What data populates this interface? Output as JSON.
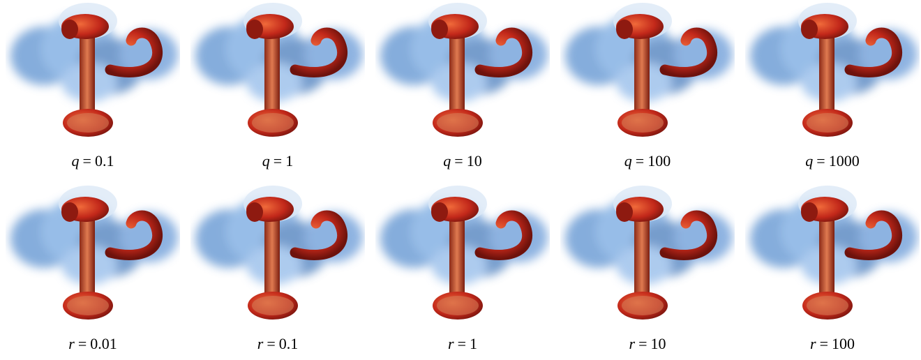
{
  "figure": {
    "rows": [
      {
        "panels": [
          {
            "symbol": "q",
            "relation": "=",
            "value": "0.1"
          },
          {
            "symbol": "q",
            "relation": "=",
            "value": "1"
          },
          {
            "symbol": "q",
            "relation": "=",
            "value": "10"
          },
          {
            "symbol": "q",
            "relation": "=",
            "value": "100"
          },
          {
            "symbol": "q",
            "relation": "=",
            "value": "1000"
          }
        ]
      },
      {
        "panels": [
          {
            "symbol": "r",
            "relation": "=",
            "value": "0.01"
          },
          {
            "symbol": "r",
            "relation": "=",
            "value": "0.1"
          },
          {
            "symbol": "r",
            "relation": "=",
            "value": "1"
          },
          {
            "symbol": "r",
            "relation": "=",
            "value": "10"
          },
          {
            "symbol": "r",
            "relation": "=",
            "value": "100"
          }
        ]
      }
    ]
  }
}
